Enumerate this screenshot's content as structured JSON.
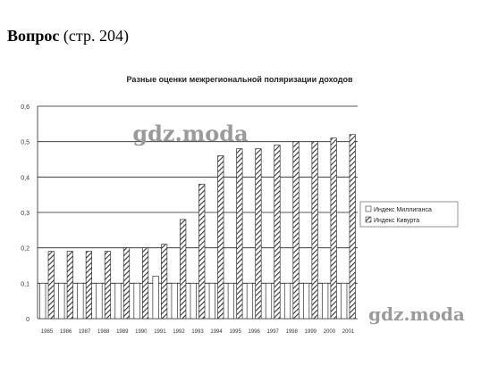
{
  "heading": {
    "bold": "Вопрос",
    "normal": "(стр. 204)"
  },
  "watermarks": [
    "gdz.moda",
    "gdz.moda"
  ],
  "chart_data": {
    "type": "bar",
    "title": "Разные оценки межрегиональной поляризации доходов",
    "xlabel": "",
    "ylabel": "",
    "categories": [
      "1985",
      "1986",
      "1987",
      "1988",
      "1989",
      "1990",
      "1991",
      "1992",
      "1993",
      "1994",
      "1995",
      "1996",
      "1997",
      "1998",
      "1999",
      "2000",
      "2001"
    ],
    "ylim": [
      0,
      0.6
    ],
    "yticks": [
      "0",
      "0,1",
      "0,2",
      "0,3",
      "0,4",
      "0,5",
      "0,6"
    ],
    "grid": true,
    "legend_position": "right",
    "series": [
      {
        "name": "Индекс Миллиганса",
        "values": [
          0.1,
          0.1,
          0.1,
          0.1,
          0.1,
          0.1,
          0.12,
          0.1,
          0.1,
          0.1,
          0.1,
          0.1,
          0.1,
          0.1,
          0.1,
          0.1,
          0.1
        ],
        "pattern": "white"
      },
      {
        "name": "Индекс Кивурта",
        "values": [
          0.19,
          0.19,
          0.19,
          0.19,
          0.2,
          0.2,
          0.21,
          0.28,
          0.38,
          0.46,
          0.48,
          0.48,
          0.49,
          0.5,
          0.5,
          0.51,
          0.52
        ],
        "pattern": "hatched"
      }
    ]
  }
}
